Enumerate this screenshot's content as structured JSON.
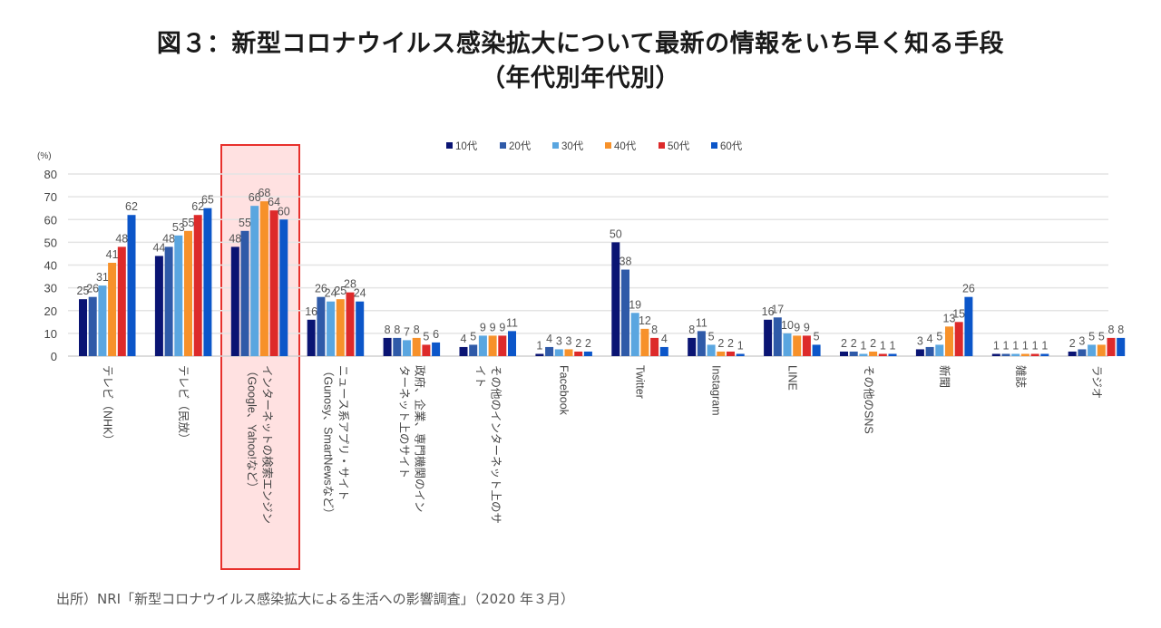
{
  "title_line1": "図３：新型コロナウイルス感染拡大について最新の情報をいち早く知る手段",
  "title_line2": "（年代別年代別）",
  "source": "出所）NRI「新型コロナウイルス感染拡大による生活への影響調査」（2020 年３月）",
  "highlighted_category_index": 2,
  "chart_data": {
    "type": "bar",
    "title": "図３：新型コロナウイルス感染拡大について最新の情報をいち早く知る手段（年代別年代別）",
    "ylabel": "(%)",
    "xlabel": "",
    "ylim": [
      0,
      80
    ],
    "yticks": [
      0,
      10,
      20,
      30,
      40,
      50,
      60,
      70,
      80
    ],
    "grid": true,
    "legend_position": "top-center",
    "categories": [
      "テレビ（NHK）",
      "テレビ（民放）",
      "インターネットの検索エンジン（Google、Yahoo!など）",
      "ニュース系アプリ・サイト（Gunosy、SmartNewsなど）",
      "政府、企業、専門機関のインターネット上のサイト",
      "その他のインターネット上のサイト",
      "Facebook",
      "Twitter",
      "Instagram",
      "LINE",
      "その他のSNS",
      "新聞",
      "雑誌",
      "ラジオ"
    ],
    "category_label_lines": [
      [
        "テレビ（NHK）"
      ],
      [
        "テレビ（民放）"
      ],
      [
        "インターネットの検索エンジン",
        "（Google、Yahoo!など）"
      ],
      [
        "ニュース系アプリ・サイト",
        "（Gunosy、SmartNewsなど）"
      ],
      [
        "政府、企業、専門機関のイン",
        "ターネット上のサイト"
      ],
      [
        "その他のインターネット上のサ",
        "イト"
      ],
      [
        "Facebook"
      ],
      [
        "Twitter"
      ],
      [
        "Instagram"
      ],
      [
        "LINE"
      ],
      [
        "その他のSNS"
      ],
      [
        "新聞"
      ],
      [
        "雑誌"
      ],
      [
        "ラジオ"
      ]
    ],
    "series": [
      {
        "name": "10代",
        "color": "#0a1473",
        "values": [
          25,
          44,
          48,
          16,
          8,
          4,
          1,
          50,
          8,
          16,
          2,
          3,
          1,
          2
        ]
      },
      {
        "name": "20代",
        "color": "#2f5aa8",
        "values": [
          26,
          48,
          55,
          26,
          8,
          5,
          4,
          38,
          11,
          17,
          2,
          4,
          1,
          3
        ]
      },
      {
        "name": "30代",
        "color": "#5aa6e0",
        "values": [
          31,
          53,
          66,
          24,
          7,
          9,
          3,
          19,
          5,
          10,
          1,
          5,
          1,
          5
        ]
      },
      {
        "name": "40代",
        "color": "#f7912a",
        "values": [
          41,
          55,
          68,
          25,
          8,
          9,
          3,
          12,
          2,
          9,
          2,
          13,
          1,
          5
        ]
      },
      {
        "name": "50代",
        "color": "#dd2a2a",
        "values": [
          48,
          62,
          64,
          28,
          5,
          9,
          2,
          8,
          2,
          9,
          1,
          15,
          1,
          8
        ]
      },
      {
        "name": "60代",
        "color": "#0c56c9",
        "values": [
          62,
          65,
          60,
          24,
          6,
          11,
          2,
          4,
          1,
          5,
          1,
          26,
          1,
          8
        ]
      }
    ]
  }
}
